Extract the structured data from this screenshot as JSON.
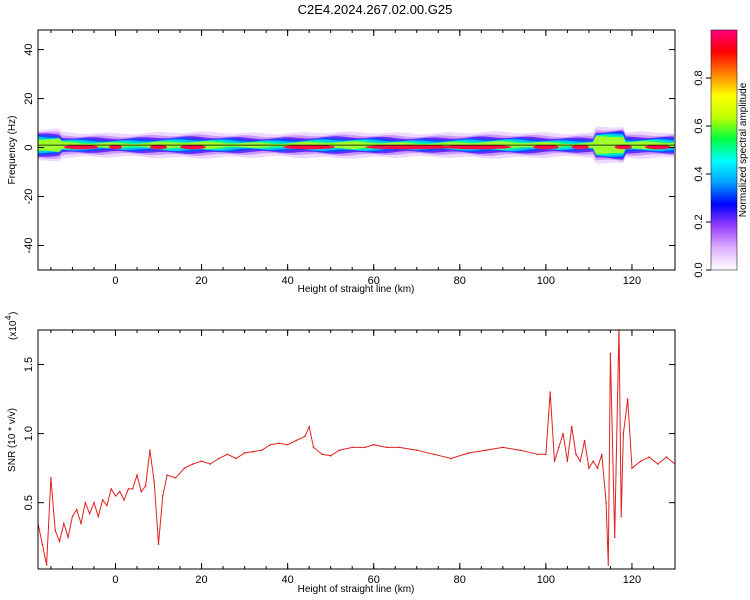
{
  "title": "C2E4.2024.267.02.00.G25",
  "chart_data": [
    {
      "type": "heatmap",
      "xlabel": "Height of straight line (km)",
      "ylabel": "Frequency (Hz)",
      "xlim": [
        -18,
        130
      ],
      "ylim": [
        -50,
        48
      ],
      "xticks": [
        0,
        20,
        40,
        60,
        80,
        100,
        120
      ],
      "yticks": [
        40,
        20,
        0,
        -20,
        -40
      ],
      "colorbar": {
        "label": "Normalized spectral amplitude",
        "range": [
          0.0,
          1.0
        ],
        "ticks": [
          "0.0",
          "0.2",
          "0.4",
          "0.6",
          "0.8"
        ],
        "colors": [
          "#ffffff",
          "#e0b0ff",
          "#9a40ff",
          "#0000ff",
          "#00a0ff",
          "#00ffff",
          "#00ff40",
          "#c0ff00",
          "#ffff00",
          "#ff8000",
          "#ff0000",
          "#ff0080"
        ]
      },
      "band": {
        "center_hz": 1,
        "half_width_hz": 3,
        "reference_line_hz": 1
      }
    },
    {
      "type": "line",
      "xlabel": "Height of straight line (km)",
      "ylabel": "SNR (10 * v/v)",
      "multiplier": "(x10",
      "multiplier_exp": "4",
      "xlim": [
        -18,
        130
      ],
      "ylim": [
        0.02,
        1.75
      ],
      "xticks": [
        0,
        20,
        40,
        60,
        80,
        100,
        120
      ],
      "yticks": [
        0.5,
        1.0,
        1.5
      ],
      "ytick_labels": [
        "0.5",
        "1.0",
        "1.5"
      ],
      "line_color": "#e02020",
      "series": [
        {
          "x": [
            -18,
            -17,
            -16,
            -15,
            -14,
            -13,
            -12,
            -11,
            -10,
            -9,
            -8,
            -7,
            -6,
            -5,
            -4,
            -3,
            -2,
            -1,
            0,
            1,
            2,
            3,
            4,
            5,
            6,
            7,
            8,
            9,
            10,
            11,
            12,
            14,
            16,
            18,
            20,
            22,
            24,
            26,
            28,
            30,
            32,
            34,
            36,
            38,
            40,
            42,
            44,
            45,
            46,
            48,
            50,
            52,
            55,
            58,
            60,
            63,
            66,
            70,
            74,
            78,
            82,
            86,
            90,
            94,
            98,
            100,
            101,
            102,
            103,
            104,
            105,
            106,
            107,
            108,
            109,
            110,
            111,
            112,
            113,
            114,
            114.5,
            115,
            116,
            117,
            117.5,
            118,
            119,
            120,
            122,
            124,
            126,
            128,
            130
          ],
          "values": [
            0.35,
            0.2,
            0.05,
            0.68,
            0.3,
            0.22,
            0.35,
            0.25,
            0.4,
            0.45,
            0.35,
            0.5,
            0.42,
            0.5,
            0.4,
            0.52,
            0.48,
            0.6,
            0.55,
            0.58,
            0.52,
            0.6,
            0.6,
            0.7,
            0.58,
            0.62,
            0.88,
            0.65,
            0.2,
            0.55,
            0.7,
            0.68,
            0.75,
            0.78,
            0.8,
            0.78,
            0.82,
            0.85,
            0.82,
            0.86,
            0.87,
            0.88,
            0.92,
            0.93,
            0.92,
            0.95,
            0.98,
            1.05,
            0.9,
            0.85,
            0.84,
            0.88,
            0.9,
            0.9,
            0.92,
            0.9,
            0.9,
            0.88,
            0.85,
            0.82,
            0.86,
            0.88,
            0.9,
            0.88,
            0.85,
            0.85,
            1.3,
            0.8,
            0.9,
            1.0,
            0.8,
            1.05,
            0.85,
            0.8,
            0.95,
            0.75,
            0.8,
            0.75,
            0.85,
            0.5,
            0.05,
            1.58,
            0.25,
            1.78,
            0.4,
            1.0,
            1.25,
            0.75,
            0.8,
            0.83,
            0.78,
            0.83,
            0.78
          ]
        }
      ]
    }
  ]
}
